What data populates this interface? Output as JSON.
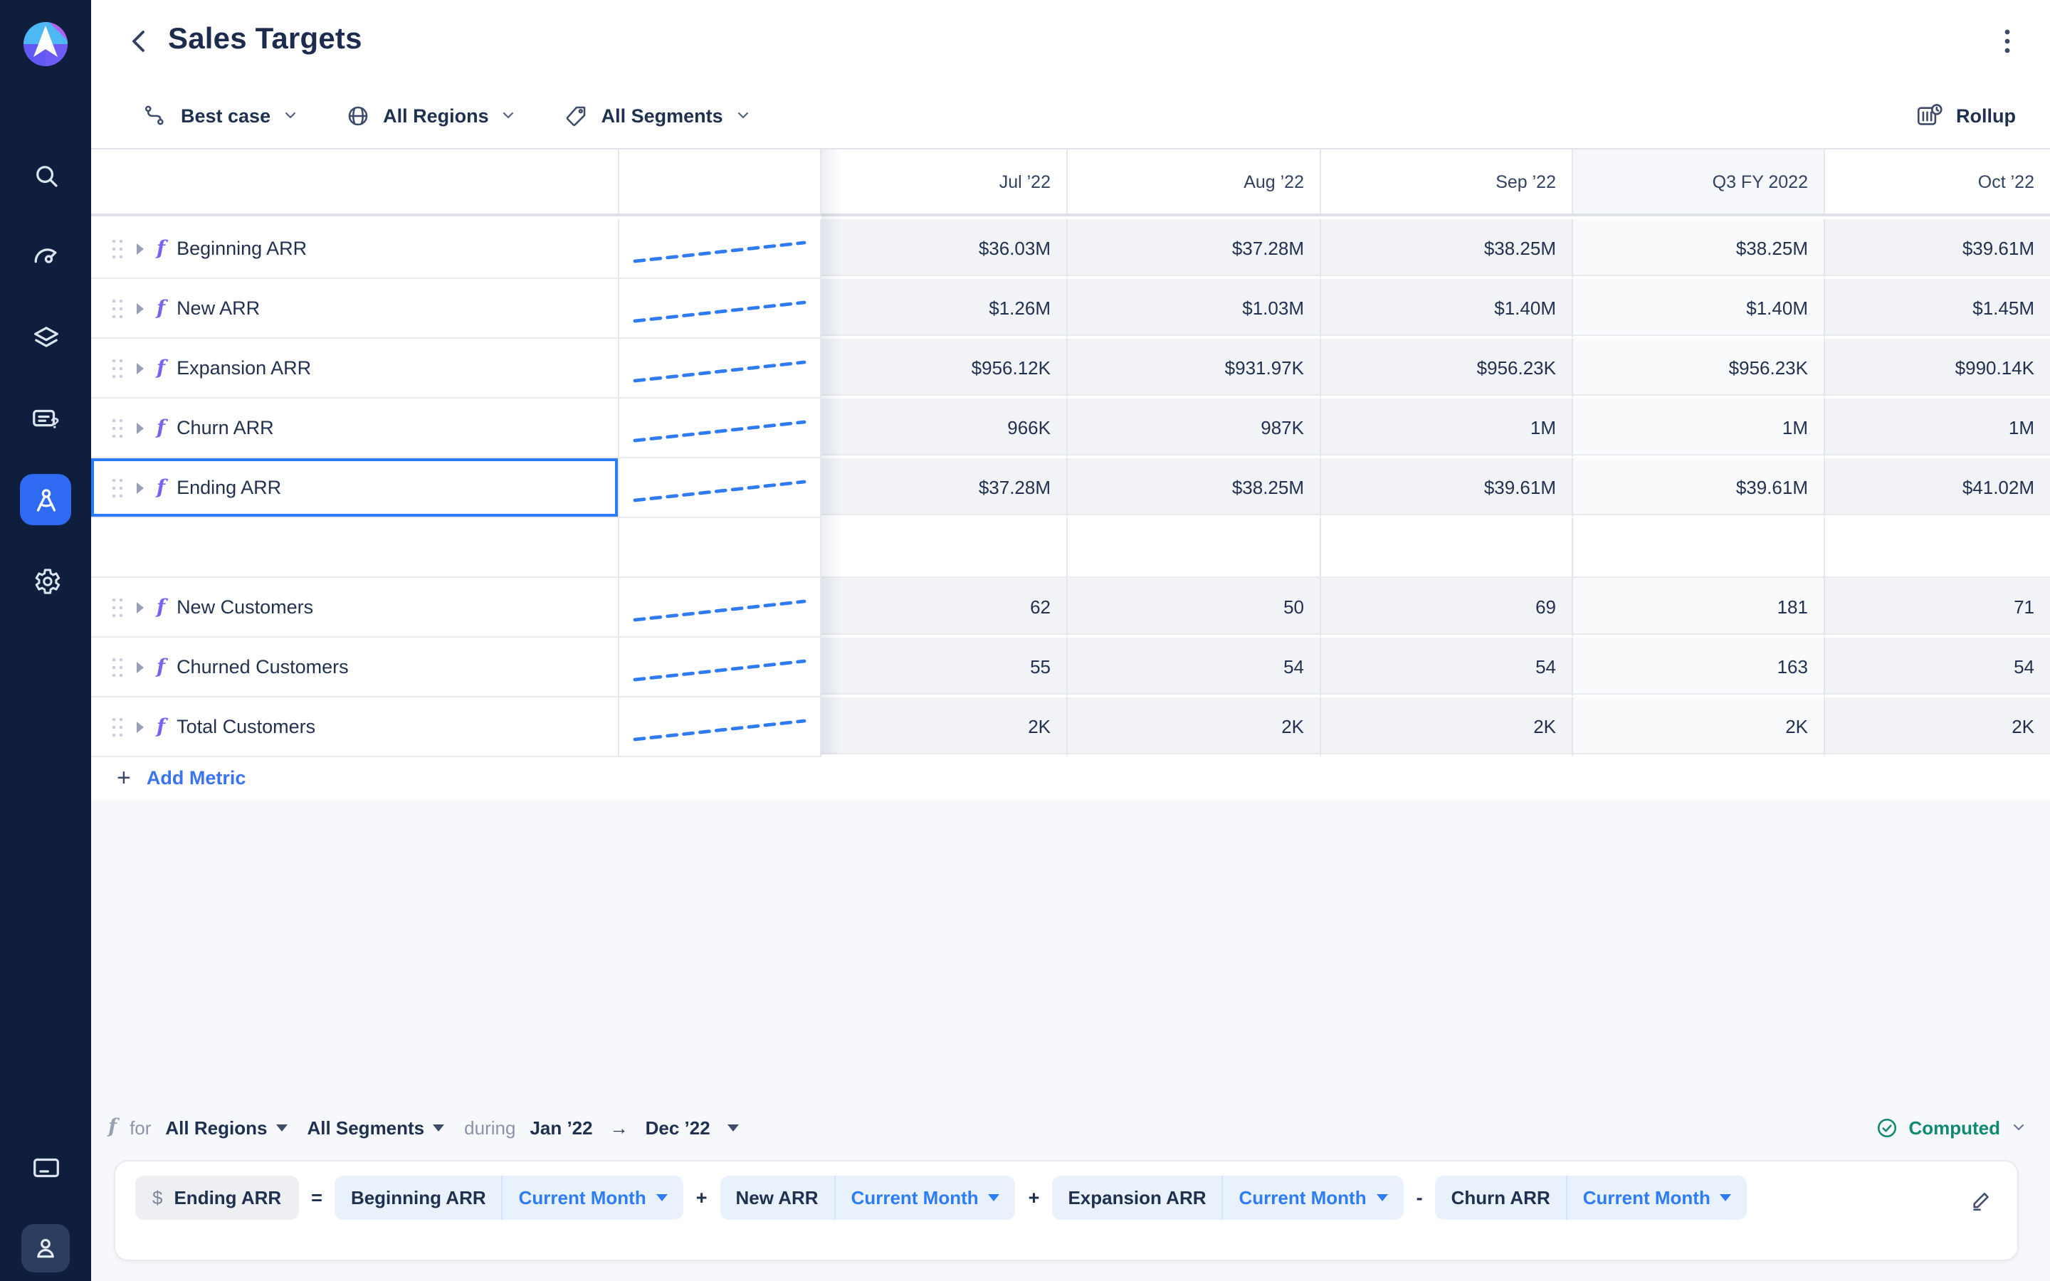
{
  "topbar": {
    "title": "Sales Targets"
  },
  "filters": {
    "scenario": "Best case",
    "region": "All Regions",
    "segment": "All Segments",
    "rollup": "Rollup"
  },
  "table": {
    "columns": [
      "Jul ’22",
      "Aug ’22",
      "Sep ’22",
      "Q3 FY 2022",
      "Oct ’22"
    ],
    "quarter_column_index": 3,
    "rows": [
      {
        "label": "Beginning ARR",
        "values": [
          "$36.03M",
          "$37.28M",
          "$38.25M",
          "$38.25M",
          "$39.61M"
        ]
      },
      {
        "label": "New ARR",
        "values": [
          "$1.26M",
          "$1.03M",
          "$1.40M",
          "$1.40M",
          "$1.45M"
        ]
      },
      {
        "label": "Expansion ARR",
        "values": [
          "$956.12K",
          "$931.97K",
          "$956.23K",
          "$956.23K",
          "$990.14K"
        ]
      },
      {
        "label": "Churn ARR",
        "values": [
          "966K",
          "987K",
          "1M",
          "1M",
          "1M"
        ]
      },
      {
        "label": "Ending ARR",
        "values": [
          "$37.28M",
          "$38.25M",
          "$39.61M",
          "$39.61M",
          "$41.02M"
        ],
        "selected": true
      },
      {
        "label": "",
        "values": [
          "",
          "",
          "",
          "",
          ""
        ],
        "empty": true
      },
      {
        "label": "New Customers",
        "values": [
          "62",
          "50",
          "69",
          "181",
          "71"
        ]
      },
      {
        "label": "Churned Customers",
        "values": [
          "55",
          "54",
          "54",
          "163",
          "54"
        ]
      },
      {
        "label": "Total Customers",
        "values": [
          "2K",
          "2K",
          "2K",
          "2K",
          "2K"
        ]
      }
    ],
    "plus": "+",
    "add_metric_label": "Add Metric"
  },
  "formula": {
    "for_label": "for",
    "region": "All Regions",
    "segment": "All Segments",
    "during_label": "during",
    "range_from": "Jan ’22",
    "range_arrow": "→",
    "range_to": "Dec ’22",
    "status": "Computed",
    "target_currency": "$",
    "target": "Ending ARR",
    "equals": "=",
    "terms": [
      {
        "metric": "Beginning ARR",
        "modifier": "Current Month",
        "op_after": "+"
      },
      {
        "metric": "New ARR",
        "modifier": "Current Month",
        "op_after": "+"
      },
      {
        "metric": "Expansion ARR",
        "modifier": "Current Month",
        "op_after": "-"
      },
      {
        "metric": "Churn ARR",
        "modifier": "Current Month",
        "op_after": ""
      }
    ]
  },
  "colors": {
    "accent_blue": "#2e6bf2",
    "sparkline_blue": "#2f7bf5",
    "selection_blue": "#2b7bf6",
    "computed_teal": "#0d8a6f",
    "sidebar_navy": "#0f1e3d"
  }
}
